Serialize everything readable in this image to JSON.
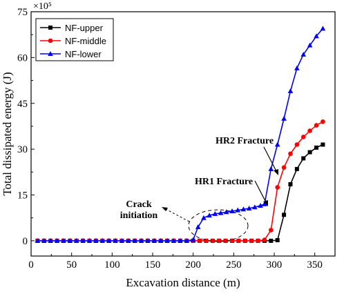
{
  "chart_data": {
    "type": "line",
    "xlabel": "Excavation distance (m)",
    "ylabel": "Total dissipated energy (J)",
    "y_multiplier": "×10⁵",
    "xlim": [
      0,
      375
    ],
    "ylim": [
      -5,
      75
    ],
    "x_ticks": [
      0,
      50,
      100,
      150,
      200,
      250,
      300,
      350
    ],
    "y_ticks": [
      0,
      15,
      30,
      45,
      60,
      75
    ],
    "legend_position": "top-left",
    "series": [
      {
        "name": "NF-upper",
        "color": "#000000",
        "marker": "square",
        "x": [
          8,
          16,
          24,
          32,
          40,
          48,
          56,
          64,
          72,
          80,
          88,
          96,
          104,
          112,
          120,
          128,
          136,
          144,
          152,
          160,
          168,
          176,
          184,
          192,
          200,
          208,
          216,
          224,
          232,
          240,
          248,
          256,
          264,
          272,
          280,
          288,
          296,
          304,
          312,
          320,
          328,
          336,
          344,
          352,
          360
        ],
        "y": [
          0,
          0,
          0,
          0,
          0,
          0,
          0,
          0,
          0,
          0,
          0,
          0,
          0,
          0,
          0,
          0,
          0,
          0,
          0,
          0,
          0,
          0,
          0,
          0,
          0,
          0,
          0,
          0,
          0,
          0,
          0,
          0,
          0,
          0,
          0,
          0,
          0,
          0.2,
          8.5,
          18.5,
          23.5,
          27,
          29,
          30.5,
          31.5
        ]
      },
      {
        "name": "NF-middle",
        "color": "#ff0000",
        "marker": "circle",
        "x": [
          8,
          16,
          24,
          32,
          40,
          48,
          56,
          64,
          72,
          80,
          88,
          96,
          104,
          112,
          120,
          128,
          136,
          144,
          152,
          160,
          168,
          176,
          184,
          192,
          200,
          208,
          216,
          224,
          232,
          240,
          248,
          256,
          264,
          272,
          280,
          288,
          296,
          304,
          312,
          320,
          328,
          336,
          344,
          352,
          360
        ],
        "y": [
          0,
          0,
          0,
          0,
          0,
          0,
          0,
          0,
          0,
          0,
          0,
          0,
          0,
          0,
          0,
          0,
          0,
          0,
          0,
          0,
          0,
          0,
          0,
          0,
          0,
          0,
          0,
          0,
          0,
          0,
          0,
          0,
          0,
          0,
          0,
          0.3,
          3.5,
          17.5,
          24,
          28.5,
          31.5,
          34,
          36,
          37.8,
          39
        ]
      },
      {
        "name": "NF-lower",
        "color": "#0000ff",
        "marker": "triangle",
        "x": [
          8,
          16,
          24,
          32,
          40,
          48,
          56,
          64,
          72,
          80,
          88,
          96,
          104,
          112,
          120,
          128,
          136,
          144,
          152,
          160,
          168,
          176,
          184,
          192,
          200,
          206,
          213,
          220,
          227,
          234,
          241,
          248,
          255,
          262,
          269,
          276,
          283,
          288,
          296,
          304,
          312,
          320,
          328,
          336,
          344,
          352,
          360
        ],
        "y": [
          0,
          0,
          0,
          0,
          0,
          0,
          0,
          0,
          0,
          0,
          0,
          0,
          0,
          0,
          0,
          0,
          0,
          0,
          0,
          0,
          0,
          0,
          0,
          0,
          0.3,
          4.5,
          7.5,
          8.3,
          8.8,
          9.1,
          9.4,
          9.7,
          10,
          10.3,
          10.6,
          11,
          11.5,
          12,
          23.5,
          31.5,
          40,
          49,
          56.5,
          61,
          64,
          67,
          69.5
        ]
      }
    ],
    "annotations": [
      {
        "lines": [
          "HR2 Fracture"
        ]
      },
      {
        "lines": [
          "HR1 Fracture"
        ]
      },
      {
        "lines": [
          "Crack",
          "initiation"
        ]
      }
    ]
  }
}
